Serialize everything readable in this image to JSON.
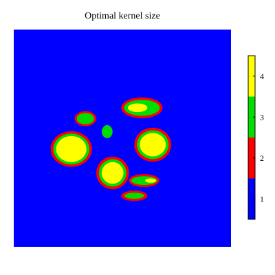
{
  "chart_data": {
    "type": "heatmap",
    "title": "Optimal kernel size",
    "xlabel": "",
    "ylabel": "",
    "grid": false,
    "colormap": [
      {
        "value": 1,
        "color": "#0000ff"
      },
      {
        "value": 2,
        "color": "#ff0000"
      },
      {
        "value": 3,
        "color": "#00dd00"
      },
      {
        "value": 4,
        "color": "#ffff00"
      }
    ],
    "colorbar": {
      "range": [
        0.5,
        4.5
      ],
      "ticks": [
        1,
        2,
        3,
        4
      ],
      "tick_labels": [
        "1",
        "2",
        "3",
        "4"
      ],
      "placement": "right"
    },
    "background_value": 1,
    "regions": [
      {
        "value": 2,
        "shape": "ellipse",
        "cx": 0.265,
        "cy": 0.55,
        "rx": 0.095,
        "ry": 0.082
      },
      {
        "value": 3,
        "shape": "ellipse",
        "cx": 0.265,
        "cy": 0.55,
        "rx": 0.083,
        "ry": 0.071
      },
      {
        "value": 4,
        "shape": "ellipse",
        "cx": 0.265,
        "cy": 0.55,
        "rx": 0.07,
        "ry": 0.06
      },
      {
        "value": 2,
        "shape": "ellipse",
        "cx": 0.455,
        "cy": 0.66,
        "rx": 0.075,
        "ry": 0.075
      },
      {
        "value": 3,
        "shape": "ellipse",
        "cx": 0.455,
        "cy": 0.66,
        "rx": 0.063,
        "ry": 0.063
      },
      {
        "value": 4,
        "shape": "ellipse",
        "cx": 0.455,
        "cy": 0.66,
        "rx": 0.05,
        "ry": 0.05
      },
      {
        "value": 2,
        "shape": "ellipse",
        "cx": 0.64,
        "cy": 0.53,
        "rx": 0.085,
        "ry": 0.078
      },
      {
        "value": 3,
        "shape": "ellipse",
        "cx": 0.64,
        "cy": 0.53,
        "rx": 0.073,
        "ry": 0.066
      },
      {
        "value": 4,
        "shape": "ellipse",
        "cx": 0.64,
        "cy": 0.53,
        "rx": 0.06,
        "ry": 0.054
      },
      {
        "value": 2,
        "shape": "ellipse",
        "cx": 0.59,
        "cy": 0.36,
        "rx": 0.095,
        "ry": 0.048
      },
      {
        "value": 3,
        "shape": "ellipse",
        "cx": 0.59,
        "cy": 0.36,
        "rx": 0.082,
        "ry": 0.037
      },
      {
        "value": 4,
        "shape": "ellipse",
        "cx": 0.57,
        "cy": 0.36,
        "rx": 0.045,
        "ry": 0.02
      },
      {
        "value": 2,
        "shape": "ellipse",
        "cx": 0.33,
        "cy": 0.41,
        "rx": 0.05,
        "ry": 0.035
      },
      {
        "value": 3,
        "shape": "ellipse",
        "cx": 0.33,
        "cy": 0.41,
        "rx": 0.04,
        "ry": 0.026
      },
      {
        "value": 2,
        "shape": "ellipse",
        "cx": 0.6,
        "cy": 0.695,
        "rx": 0.07,
        "ry": 0.03
      },
      {
        "value": 3,
        "shape": "ellipse",
        "cx": 0.6,
        "cy": 0.695,
        "rx": 0.06,
        "ry": 0.02
      },
      {
        "value": 4,
        "shape": "ellipse",
        "cx": 0.63,
        "cy": 0.695,
        "rx": 0.025,
        "ry": 0.01
      },
      {
        "value": 2,
        "shape": "ellipse",
        "cx": 0.555,
        "cy": 0.765,
        "rx": 0.06,
        "ry": 0.024
      },
      {
        "value": 3,
        "shape": "ellipse",
        "cx": 0.555,
        "cy": 0.765,
        "rx": 0.045,
        "ry": 0.014
      },
      {
        "value": 3,
        "shape": "ellipse",
        "cx": 0.43,
        "cy": 0.47,
        "rx": 0.025,
        "ry": 0.03
      }
    ]
  }
}
